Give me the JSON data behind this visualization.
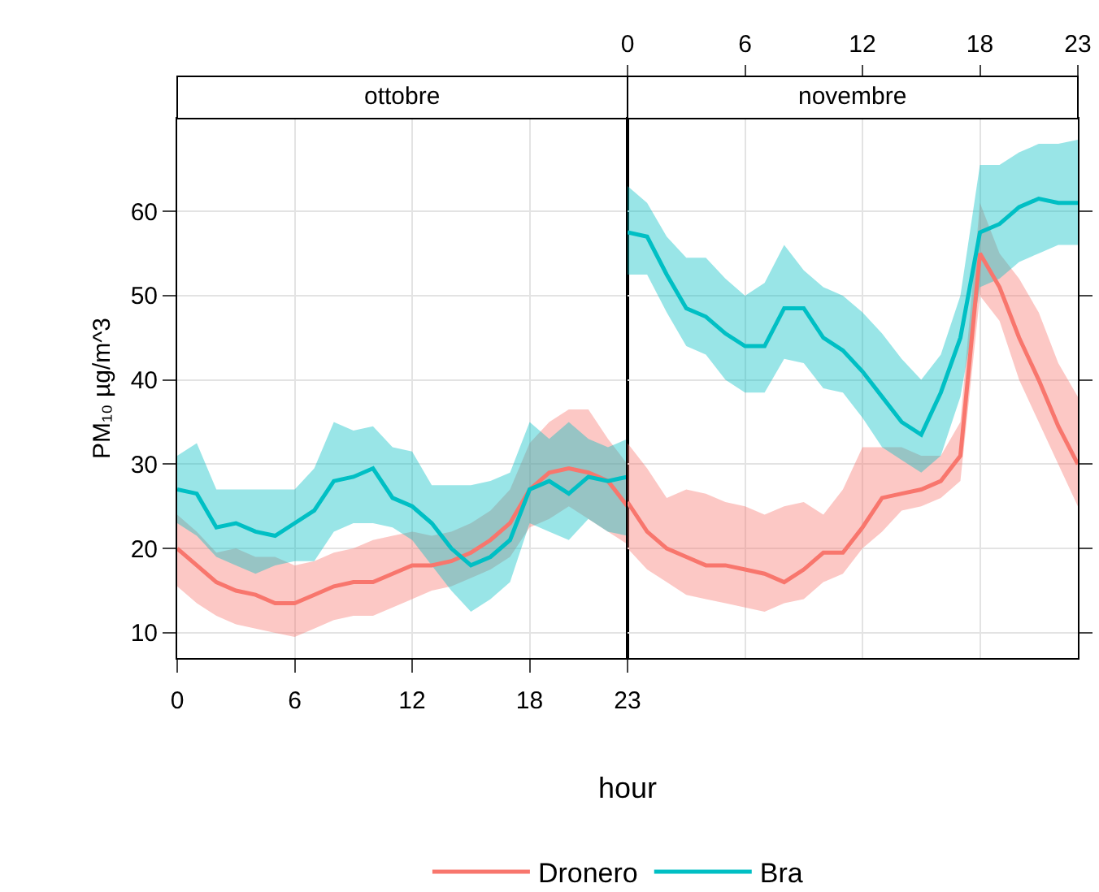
{
  "chart_data": [
    {
      "type": "line",
      "title": "ottobre",
      "xlabel": "hour",
      "ylabel": "PM₁₀ µg/m^3",
      "legend": "bottom",
      "grid": true,
      "x": [
        0,
        1,
        2,
        3,
        4,
        5,
        6,
        7,
        8,
        9,
        10,
        11,
        12,
        13,
        14,
        15,
        16,
        17,
        18,
        19,
        20,
        21,
        22,
        23
      ],
      "xlim": [
        0,
        23
      ],
      "xticks": [
        0,
        6,
        12,
        18,
        23
      ],
      "ylim": [
        7,
        71
      ],
      "yticks": [
        10,
        20,
        30,
        40,
        50,
        60
      ],
      "series": [
        {
          "name": "Dronero",
          "color": "#f8766d",
          "values": [
            20,
            18,
            16,
            15,
            14.5,
            13.5,
            13.5,
            14.5,
            15.5,
            16,
            16,
            17,
            18,
            18,
            18.5,
            19.5,
            21,
            23,
            27,
            29,
            29.5,
            29,
            28,
            25
          ],
          "lower": [
            15.5,
            13.5,
            12,
            11,
            10.5,
            10,
            9.5,
            10.5,
            11.5,
            12,
            12,
            13,
            14,
            15,
            15.5,
            16.5,
            17.5,
            19,
            22.5,
            23.5,
            25,
            23.5,
            22,
            20.5
          ],
          "upper": [
            24,
            22,
            19.5,
            20,
            19,
            19,
            18,
            18.5,
            19.5,
            20,
            21,
            21.5,
            22,
            21.5,
            22,
            23,
            24.5,
            27,
            32.5,
            35,
            36.5,
            36.5,
            33,
            30
          ]
        },
        {
          "name": "Bra",
          "color": "#00bfc4",
          "values": [
            27,
            26.5,
            22.5,
            23,
            22,
            21.5,
            23,
            24.5,
            28,
            28.5,
            29.5,
            26,
            25,
            23,
            20,
            18,
            19,
            21,
            27,
            28,
            26.5,
            28.5,
            28,
            28.5
          ],
          "lower": [
            23,
            21.5,
            19,
            18,
            17,
            18,
            18.5,
            18.5,
            22,
            23,
            23,
            22.5,
            21,
            18,
            15,
            12.5,
            14,
            16,
            23,
            22,
            21,
            23.5,
            22,
            21.5
          ],
          "upper": [
            31,
            32.5,
            27,
            27,
            27,
            27,
            27,
            29.5,
            35,
            34,
            34.5,
            32,
            31.5,
            27.5,
            27.5,
            27.5,
            28,
            29,
            35,
            33,
            35,
            33,
            32,
            33
          ]
        }
      ]
    },
    {
      "type": "line",
      "title": "novembre",
      "grid": true,
      "tick_labels": "x",
      "x": [
        0,
        1,
        2,
        3,
        4,
        5,
        6,
        7,
        8,
        9,
        10,
        11,
        12,
        13,
        14,
        15,
        16,
        17,
        18,
        19,
        20,
        21,
        22,
        23
      ],
      "xlim": [
        0,
        23
      ],
      "xticks": [
        0,
        6,
        12,
        18,
        23
      ],
      "ylim": [
        7,
        71
      ],
      "yticks": [
        10,
        20,
        30,
        40,
        50,
        60
      ],
      "series": [
        {
          "color": "#f8766d",
          "values": [
            25.5,
            22,
            20,
            19,
            18,
            18,
            17.5,
            17,
            16,
            17.5,
            19.5,
            19.5,
            22.5,
            26,
            26.5,
            27,
            28,
            31,
            55,
            51,
            45,
            40,
            34.5,
            30
          ],
          "lower": [
            20,
            17.5,
            16,
            14.5,
            14,
            13.5,
            13,
            12.5,
            13.5,
            14,
            16,
            17,
            20,
            22,
            24.5,
            25,
            26,
            28,
            50,
            47,
            40,
            35,
            30,
            25
          ],
          "upper": [
            32.5,
            29.5,
            26,
            27,
            26.5,
            25.5,
            25,
            24,
            25,
            25.5,
            24,
            27,
            32,
            32,
            32,
            31,
            31,
            35,
            61,
            55,
            52,
            48,
            42,
            38
          ]
        },
        {
          "color": "#00bfc4",
          "values": [
            57.5,
            57,
            52.5,
            48.5,
            47.5,
            45.5,
            44,
            44,
            48.5,
            48.5,
            45,
            43.5,
            41,
            38,
            35,
            33.5,
            38.5,
            45,
            57.5,
            58.5,
            60.5,
            61.5,
            61,
            61
          ],
          "lower": [
            52.5,
            52.5,
            48,
            44,
            43,
            40,
            38.5,
            38.5,
            42.5,
            42,
            39,
            38.5,
            35.5,
            32,
            30.5,
            29,
            31,
            38,
            51,
            52,
            54,
            55,
            56,
            56
          ],
          "upper": [
            63,
            61,
            57,
            54.5,
            54.5,
            52,
            50,
            51.5,
            56,
            53,
            51,
            50,
            48,
            45.5,
            42.5,
            40,
            43,
            50,
            65.5,
            65.5,
            67,
            68,
            68,
            68.5
          ]
        }
      ]
    }
  ]
}
